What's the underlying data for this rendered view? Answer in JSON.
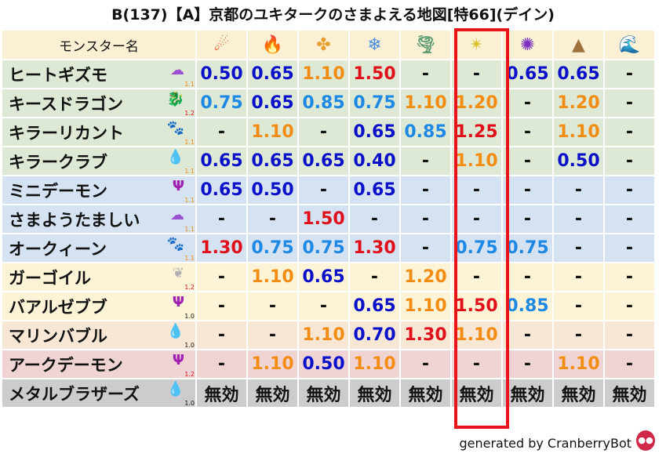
{
  "title": "B(137)【A】京都のユキタークのさまよえる地図[特66](デイン)",
  "header": {
    "name_label": "モンスター名",
    "elements": [
      {
        "icon": "fire-ball-icon",
        "glyph": "☄",
        "color": "#e8401a"
      },
      {
        "icon": "flame-icon",
        "glyph": "🔥",
        "color": "#f05a1a"
      },
      {
        "icon": "wind-cross-icon",
        "glyph": "✤",
        "color": "#e8a030"
      },
      {
        "icon": "ice-flower-icon",
        "glyph": "❄",
        "color": "#4a8ae0"
      },
      {
        "icon": "tornado-icon",
        "glyph": "🌪",
        "color": "#5a9a70"
      },
      {
        "icon": "lightning-star-icon",
        "glyph": "✴",
        "color": "#d8c020"
      },
      {
        "icon": "dark-swirl-icon",
        "glyph": "✺",
        "color": "#7a30c0"
      },
      {
        "icon": "earth-mountain-icon",
        "glyph": "▲",
        "color": "#a0703a"
      },
      {
        "icon": "wave-icon",
        "glyph": "🌊",
        "color": "#1a70d0"
      }
    ]
  },
  "colors": {
    "highlight": "#e8141a",
    "low_strong": "#0a10c8",
    "low": "#1e88e5",
    "high": "#f28c13",
    "high_strong": "#e0101a"
  },
  "rows": [
    {
      "name": "ヒートギズモ",
      "bg": "#dde9d5",
      "icon": "gas-monster-icon",
      "glyph": "☁",
      "icolor": "#9a50d0",
      "level": "1.1",
      "lcolor": "#f28c13",
      "values": [
        "0.50",
        "0.65",
        "1.10",
        "1.50",
        "-",
        "-",
        "0.65",
        "0.65",
        "-"
      ]
    },
    {
      "name": "キースドラゴン",
      "bg": "#dde9d5",
      "icon": "dragon-icon",
      "glyph": "🐉",
      "icolor": "#c01818",
      "level": "1.2",
      "lcolor": "#e0101a",
      "values": [
        "0.75",
        "0.65",
        "0.85",
        "0.75",
        "1.10",
        "1.20",
        "-",
        "1.20",
        "-"
      ]
    },
    {
      "name": "キラーリカント",
      "bg": "#dde9d5",
      "icon": "paw-icon",
      "glyph": "🐾",
      "icolor": "#e08a10",
      "level": "1.1",
      "lcolor": "#f28c13",
      "values": [
        "-",
        "1.10",
        "-",
        "0.65",
        "0.85",
        "1.25",
        "-",
        "1.10",
        "-"
      ]
    },
    {
      "name": "キラークラブ",
      "bg": "#dde9d5",
      "icon": "water-drop-icon",
      "glyph": "💧",
      "icolor": "#2a80d8",
      "level": "1.1",
      "lcolor": "#f28c13",
      "values": [
        "0.65",
        "0.65",
        "0.65",
        "0.40",
        "-",
        "1.10",
        "-",
        "0.50",
        "-"
      ]
    },
    {
      "name": "ミニデーモン",
      "bg": "#d5e2f1",
      "icon": "trident-icon",
      "glyph": "Ψ",
      "icolor": "#a020b0",
      "level": "1.1",
      "lcolor": "#f28c13",
      "values": [
        "0.65",
        "0.50",
        "-",
        "0.65",
        "-",
        "-",
        "-",
        "-",
        "-"
      ]
    },
    {
      "name": "さまようたましい",
      "bg": "#d5e2f1",
      "icon": "gas-monster-icon",
      "glyph": "☁",
      "icolor": "#9a50d0",
      "level": "1.1",
      "lcolor": "#f28c13",
      "values": [
        "-",
        "-",
        "1.50",
        "-",
        "-",
        "-",
        "-",
        "-",
        "-"
      ]
    },
    {
      "name": "オークィーン",
      "bg": "#d5e2f1",
      "icon": "paw-icon",
      "glyph": "🐾",
      "icolor": "#e08a10",
      "level": "1.1",
      "lcolor": "#f28c13",
      "values": [
        "1.30",
        "0.75",
        "0.75",
        "1.30",
        "-",
        "0.75",
        "0.75",
        "-",
        "-"
      ]
    },
    {
      "name": "ガーゴイル",
      "bg": "#fdf3d7",
      "icon": "wing-icon",
      "glyph": "❦",
      "icolor": "#b0b0b0",
      "level": "1.2",
      "lcolor": "#e0101a",
      "values": [
        "-",
        "1.10",
        "0.65",
        "-",
        "1.20",
        "-",
        "-",
        "-",
        "-"
      ]
    },
    {
      "name": "バアルゼブブ",
      "bg": "#fdf3d7",
      "icon": "trident-icon",
      "glyph": "Ψ",
      "icolor": "#a020b0",
      "level": "1.0",
      "lcolor": "#111111",
      "values": [
        "-",
        "-",
        "-",
        "0.65",
        "1.10",
        "1.50",
        "0.85",
        "-",
        "-"
      ]
    },
    {
      "name": "マリンバブル",
      "bg": "#f9e7d5",
      "icon": "slime-icon",
      "glyph": "💧",
      "icolor": "#2a80d8",
      "level": "1.0",
      "lcolor": "#111111",
      "values": [
        "-",
        "-",
        "1.10",
        "0.70",
        "1.30",
        "1.10",
        "-",
        "-",
        "-"
      ]
    },
    {
      "name": "アークデーモン",
      "bg": "#f0d4d4",
      "icon": "trident-icon",
      "glyph": "Ψ",
      "icolor": "#a020b0",
      "level": "1.2",
      "lcolor": "#e0101a",
      "values": [
        "-",
        "1.10",
        "0.50",
        "1.10",
        "-",
        "-",
        "-",
        "1.10",
        "-"
      ]
    },
    {
      "name": "メタルブラザーズ",
      "bg": "#cccccc",
      "icon": "slime-icon",
      "glyph": "💧",
      "icolor": "#2a80d8",
      "level": "1.0",
      "lcolor": "#111111",
      "values": [
        "無効",
        "無効",
        "無効",
        "無効",
        "無効",
        "無効",
        "無効",
        "無効",
        "無効"
      ]
    }
  ],
  "footer": {
    "text": "generated by CranberryBot",
    "icon": "cranberry-bot-icon"
  }
}
